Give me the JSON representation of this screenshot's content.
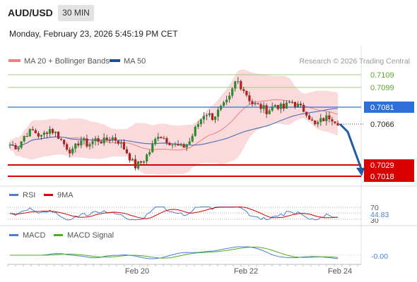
{
  "header": {
    "symbol": "AUD/USD",
    "timeframe": "30 MIN",
    "datetime": "Monday, February 23, 2026 5:45:19 PM CET"
  },
  "legend": {
    "items": [
      {
        "label": "MA 20 + Bollinger Bands",
        "color": "#f08080"
      },
      {
        "label": "MA 50",
        "color": "#1f4e9c"
      }
    ],
    "credit": "Research © 2026 Trading Central"
  },
  "chart_data": [
    {
      "type": "candlestick",
      "title": "",
      "ylim": [
        7.013,
        7.113
      ],
      "x_ticks": [
        "Feb 20",
        "Feb 22",
        "Feb 24"
      ],
      "close_path": [
        7.045,
        7.043,
        7.055,
        7.058,
        7.052,
        7.06,
        7.055,
        7.045,
        7.038,
        7.05,
        7.045,
        7.05,
        7.048,
        7.052,
        7.048,
        7.038,
        7.025,
        7.03,
        7.04,
        7.055,
        7.05,
        7.045,
        7.042,
        7.048,
        7.063,
        7.075,
        7.07,
        7.078,
        7.085,
        7.105,
        7.095,
        7.083,
        7.08,
        7.076,
        7.082,
        7.078,
        7.085,
        7.08,
        7.075,
        7.062,
        7.068,
        7.071,
        7.066
      ],
      "levels": [
        {
          "value": "0.7109",
          "color": "#58a82a",
          "style": "thin"
        },
        {
          "value": "0.7099",
          "color": "#58a82a",
          "style": "thin"
        },
        {
          "value": "0.7081",
          "color": "#2e6fd8",
          "style": "line"
        },
        {
          "value": "0.7066",
          "color": "#222222",
          "style": "dotted"
        },
        {
          "value": "0.7029",
          "color": "#d80000",
          "style": "bold"
        },
        {
          "value": "0.7018",
          "color": "#d80000",
          "style": "bold"
        }
      ],
      "forecast": {
        "from": 7.066,
        "to": 7.018,
        "color": "#1f5ca8"
      }
    },
    {
      "type": "line",
      "title": "",
      "series": [
        {
          "name": "RSI",
          "color": "#4a7fd4"
        },
        {
          "name": "9MA",
          "color": "#d80000"
        }
      ],
      "ylim": [
        25,
        80
      ],
      "levels": [
        "70",
        "50",
        "30"
      ],
      "current_value": "44.83"
    },
    {
      "type": "line",
      "title": "",
      "series": [
        {
          "name": "MACD",
          "color": "#4a7fd4"
        },
        {
          "name": "MACD Signal",
          "color": "#4caf22"
        }
      ],
      "current_value": "-0.00"
    }
  ]
}
